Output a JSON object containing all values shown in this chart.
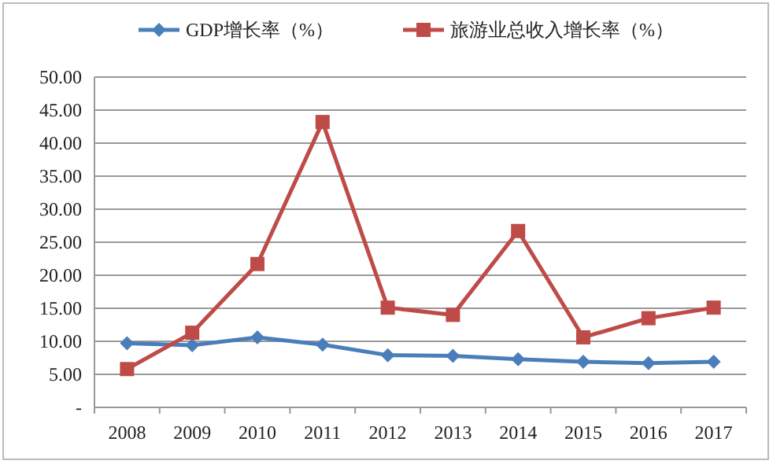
{
  "chart_data": {
    "type": "line",
    "categories": [
      "2008",
      "2009",
      "2010",
      "2011",
      "2012",
      "2013",
      "2014",
      "2015",
      "2016",
      "2017"
    ],
    "series": [
      {
        "name": "GDP增长率（%）",
        "color": "#4a7ebb",
        "marker": "diamond",
        "values": [
          9.7,
          9.4,
          10.6,
          9.5,
          7.9,
          7.8,
          7.3,
          6.9,
          6.7,
          6.9
        ]
      },
      {
        "name": "旅游业总收入增长率（%）",
        "color": "#be4b48",
        "marker": "square",
        "values": [
          5.8,
          11.3,
          21.7,
          43.2,
          15.1,
          14.0,
          26.7,
          10.6,
          13.5,
          15.1
        ]
      }
    ],
    "ylim": [
      0,
      50
    ],
    "yticks": [
      {
        "value": 0,
        "label": "-"
      },
      {
        "value": 5,
        "label": "5.00"
      },
      {
        "value": 10,
        "label": "10.00"
      },
      {
        "value": 15,
        "label": "15.00"
      },
      {
        "value": 20,
        "label": "20.00"
      },
      {
        "value": 25,
        "label": "25.00"
      },
      {
        "value": 30,
        "label": "30.00"
      },
      {
        "value": 35,
        "label": "35.00"
      },
      {
        "value": 40,
        "label": "40.00"
      },
      {
        "value": 45,
        "label": "45.00"
      },
      {
        "value": 50,
        "label": "50.00"
      }
    ],
    "grid": "y",
    "legend": "top",
    "line_style": "solid"
  }
}
